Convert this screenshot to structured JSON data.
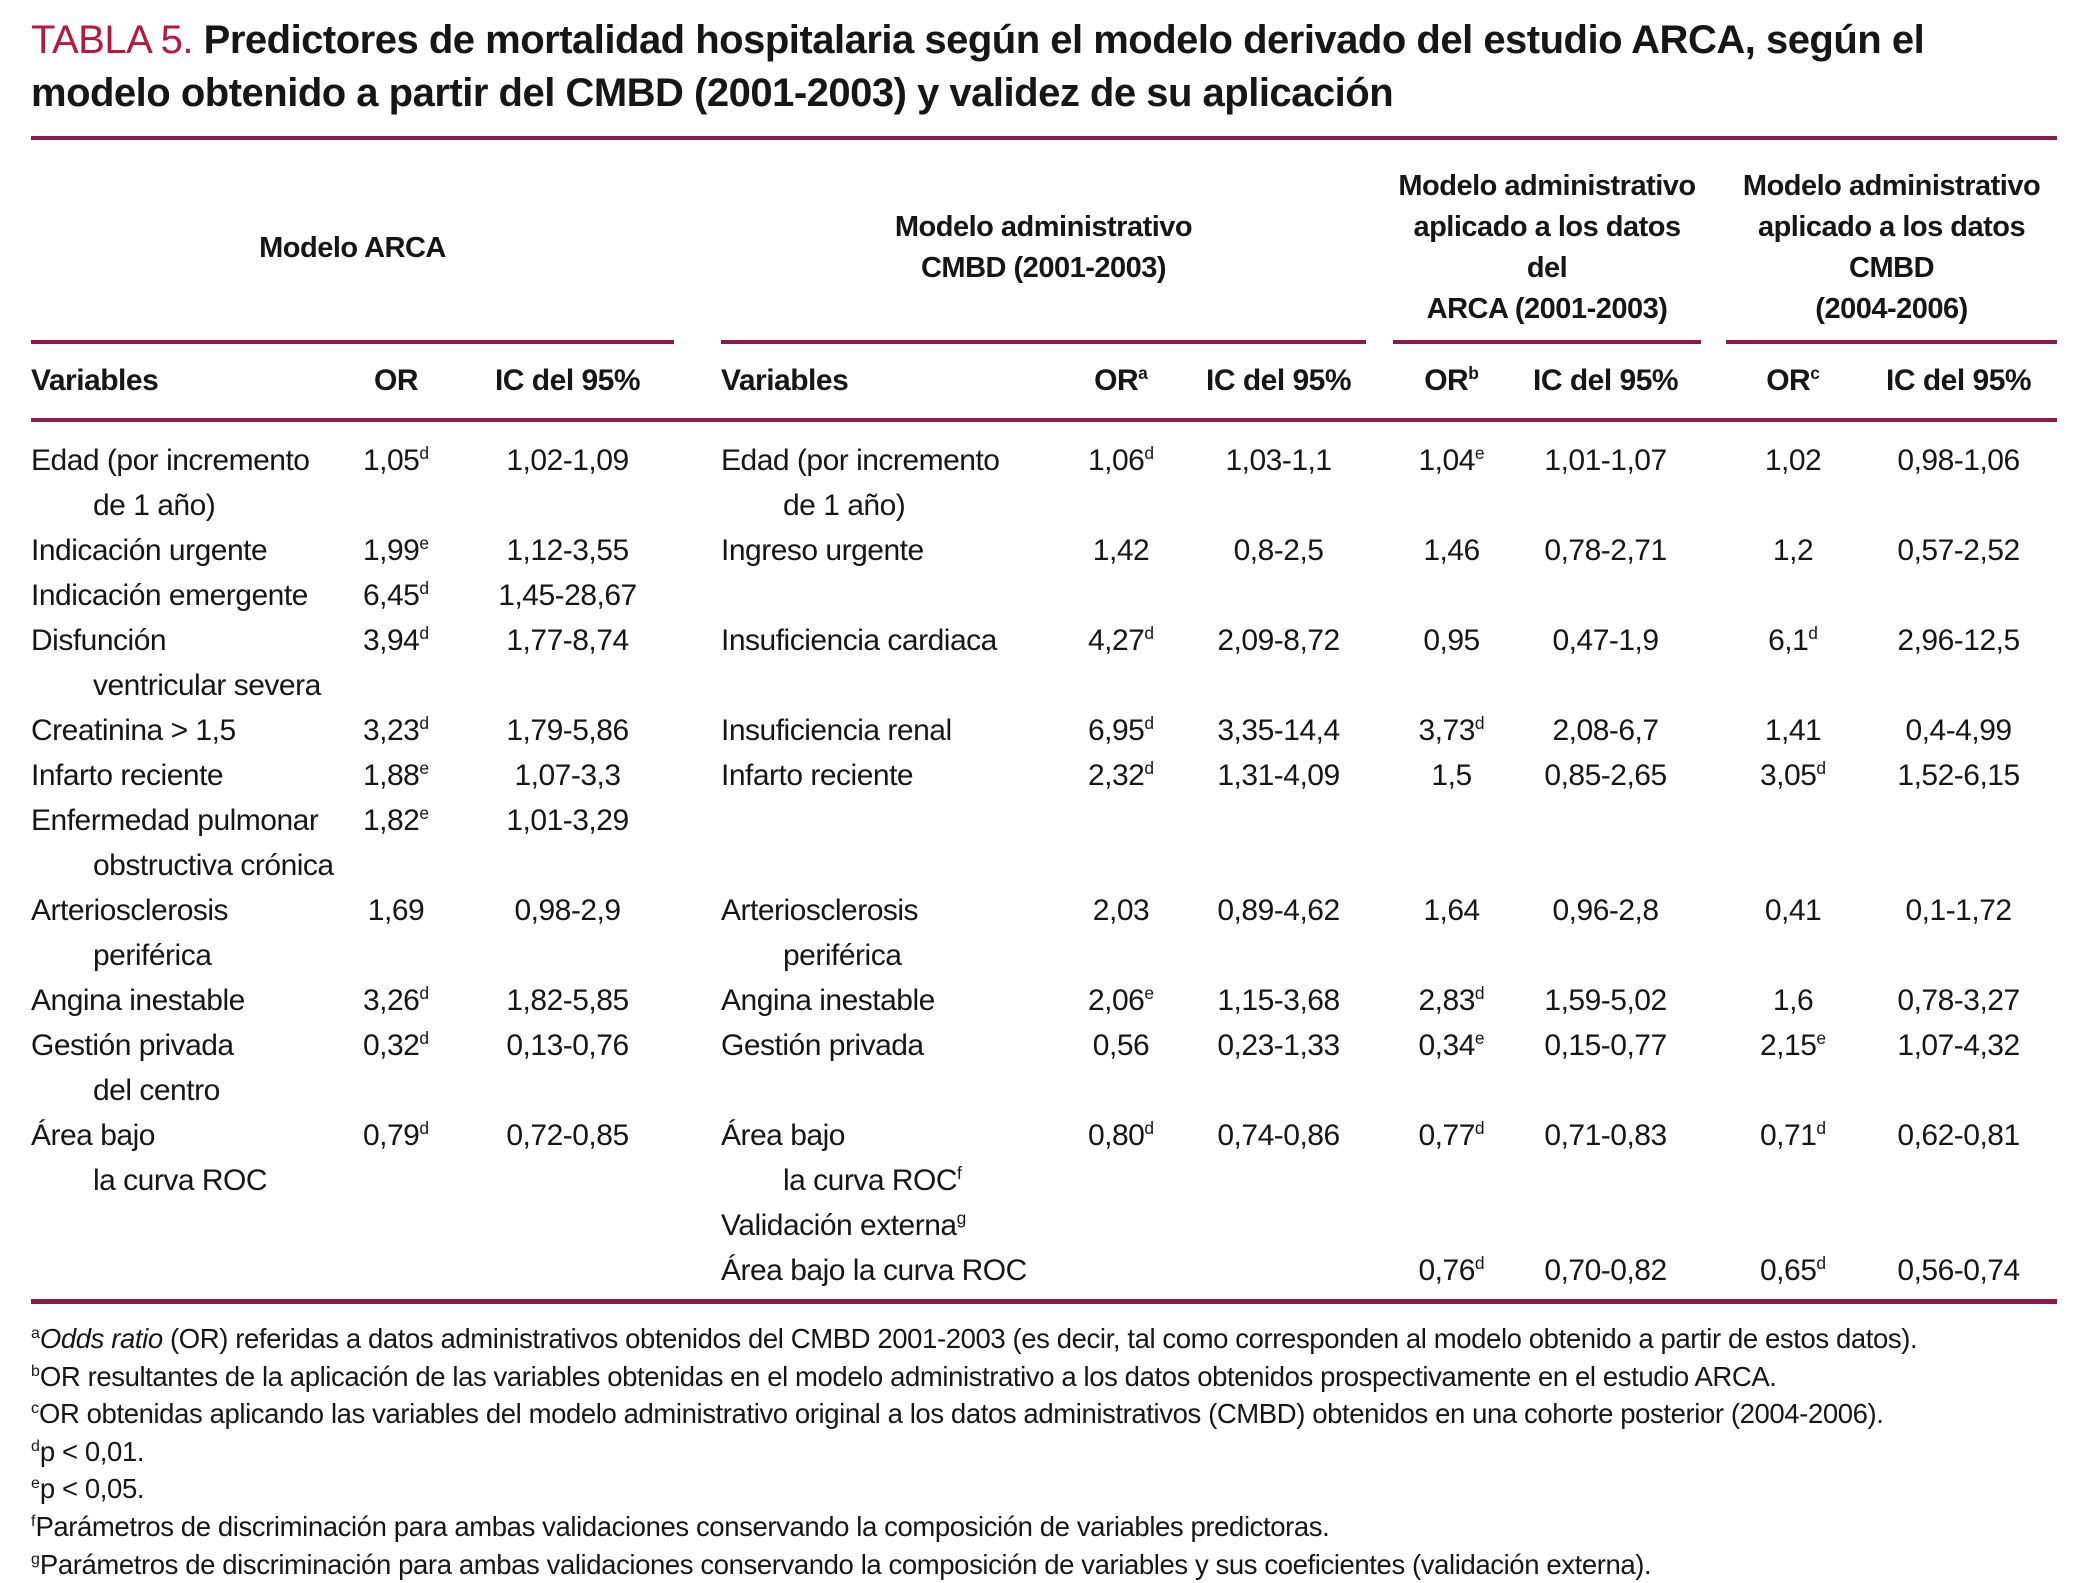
{
  "title": {
    "tag": "TABLA 5.",
    "text": "Predictores de mortalidad hospitalaria según el modelo derivado del estudio ARCA, según el modelo obtenido a partir del CMBD (2001-2003) y validez de su aplicación"
  },
  "colors": {
    "title_red": "#b5193b",
    "rule_maroon": "#871c4c",
    "text_ink": "#161616"
  },
  "group_headers": [
    {
      "lines": [
        "Modelo ARCA"
      ]
    },
    {
      "lines": [
        "Modelo administrativo",
        "CMBD (2001-2003)"
      ]
    },
    {
      "lines": [
        "Modelo administrativo",
        "aplicado a los datos del",
        "ARCA (2001-2003)"
      ]
    },
    {
      "lines": [
        "Modelo administrativo",
        "aplicado a los datos CMBD",
        "(2004-2006)"
      ]
    }
  ],
  "column_headers": {
    "variables": "Variables",
    "or": "OR",
    "ic": "IC del 95%",
    "or_sups": [
      "",
      "a",
      "b",
      "c"
    ]
  },
  "rows": [
    {
      "v1": {
        "lines": [
          {
            "t": "Edad (por incremento"
          },
          {
            "t": "de 1 año)"
          }
        ]
      },
      "or1": {
        "t": "1,05",
        "sup": "d"
      },
      "ic1": {
        "t": "1,02-1,09"
      },
      "v2": {
        "lines": [
          {
            "t": "Edad (por incremento"
          },
          {
            "t": "de 1 año)"
          }
        ]
      },
      "or2": {
        "t": "1,06",
        "sup": "d"
      },
      "ic2": {
        "t": "1,03-1,1"
      },
      "or3": {
        "t": "1,04",
        "sup": "e"
      },
      "ic3": {
        "t": "1,01-1,07"
      },
      "or4": {
        "t": "1,02"
      },
      "ic4": {
        "t": "0,98-1,06"
      }
    },
    {
      "v1": {
        "lines": [
          {
            "t": "Indicación urgente"
          }
        ]
      },
      "or1": {
        "t": "1,99",
        "sup": "e"
      },
      "ic1": {
        "t": "1,12-3,55"
      },
      "v2": {
        "lines": [
          {
            "t": "Ingreso urgente"
          }
        ]
      },
      "or2": {
        "t": "1,42"
      },
      "ic2": {
        "t": "0,8-2,5"
      },
      "or3": {
        "t": "1,46"
      },
      "ic3": {
        "t": "0,78-2,71"
      },
      "or4": {
        "t": "1,2"
      },
      "ic4": {
        "t": "0,57-2,52"
      }
    },
    {
      "v1": {
        "lines": [
          {
            "t": "Indicación emergente"
          }
        ]
      },
      "or1": {
        "t": "6,45",
        "sup": "d"
      },
      "ic1": {
        "t": "1,45-28,67"
      }
    },
    {
      "v1": {
        "lines": [
          {
            "t": "Disfunción"
          },
          {
            "t": "ventricular severa"
          }
        ]
      },
      "or1": {
        "t": "3,94",
        "sup": "d"
      },
      "ic1": {
        "t": "1,77-8,74"
      },
      "v2": {
        "lines": [
          {
            "t": "Insuficiencia cardiaca"
          }
        ]
      },
      "or2": {
        "t": "4,27",
        "sup": "d"
      },
      "ic2": {
        "t": "2,09-8,72"
      },
      "or3": {
        "t": "0,95"
      },
      "ic3": {
        "t": "0,47-1,9"
      },
      "or4": {
        "t": "6,1",
        "sup": "d"
      },
      "ic4": {
        "t": "2,96-12,5"
      }
    },
    {
      "v1": {
        "lines": [
          {
            "t": "Creatinina > 1,5"
          }
        ]
      },
      "or1": {
        "t": "3,23",
        "sup": "d"
      },
      "ic1": {
        "t": "1,79-5,86"
      },
      "v2": {
        "lines": [
          {
            "t": "Insuficiencia renal"
          }
        ]
      },
      "or2": {
        "t": "6,95",
        "sup": "d"
      },
      "ic2": {
        "t": "3,35-14,4"
      },
      "or3": {
        "t": "3,73",
        "sup": "d"
      },
      "ic3": {
        "t": "2,08-6,7"
      },
      "or4": {
        "t": "1,41"
      },
      "ic4": {
        "t": "0,4-4,99"
      }
    },
    {
      "v1": {
        "lines": [
          {
            "t": "Infarto reciente"
          }
        ]
      },
      "or1": {
        "t": "1,88",
        "sup": "e"
      },
      "ic1": {
        "t": "1,07-3,3"
      },
      "v2": {
        "lines": [
          {
            "t": "Infarto reciente"
          }
        ]
      },
      "or2": {
        "t": "2,32",
        "sup": "d"
      },
      "ic2": {
        "t": "1,31-4,09"
      },
      "or3": {
        "t": "1,5"
      },
      "ic3": {
        "t": "0,85-2,65"
      },
      "or4": {
        "t": "3,05",
        "sup": "d"
      },
      "ic4": {
        "t": "1,52-6,15"
      }
    },
    {
      "v1": {
        "lines": [
          {
            "t": "Enfermedad pulmonar"
          },
          {
            "t": "obstructiva crónica"
          }
        ]
      },
      "or1": {
        "t": "1,82",
        "sup": "e"
      },
      "ic1": {
        "t": "1,01-3,29"
      }
    },
    {
      "v1": {
        "lines": [
          {
            "t": "Arteriosclerosis"
          },
          {
            "t": "periférica"
          }
        ]
      },
      "or1": {
        "t": "1,69"
      },
      "ic1": {
        "t": "0,98-2,9"
      },
      "v2": {
        "lines": [
          {
            "t": "Arteriosclerosis"
          },
          {
            "t": "periférica"
          }
        ]
      },
      "or2": {
        "t": "2,03"
      },
      "ic2": {
        "t": "0,89-4,62"
      },
      "or3": {
        "t": "1,64"
      },
      "ic3": {
        "t": "0,96-2,8"
      },
      "or4": {
        "t": "0,41"
      },
      "ic4": {
        "t": "0,1-1,72"
      }
    },
    {
      "v1": {
        "lines": [
          {
            "t": "Angina inestable"
          }
        ]
      },
      "or1": {
        "t": "3,26",
        "sup": "d"
      },
      "ic1": {
        "t": "1,82-5,85"
      },
      "v2": {
        "lines": [
          {
            "t": "Angina inestable"
          }
        ]
      },
      "or2": {
        "t": "2,06",
        "sup": "e"
      },
      "ic2": {
        "t": "1,15-3,68"
      },
      "or3": {
        "t": "2,83",
        "sup": "d"
      },
      "ic3": {
        "t": "1,59-5,02"
      },
      "or4": {
        "t": "1,6"
      },
      "ic4": {
        "t": "0,78-3,27"
      }
    },
    {
      "v1": {
        "lines": [
          {
            "t": "Gestión privada"
          },
          {
            "t": "del centro"
          }
        ]
      },
      "or1": {
        "t": "0,32",
        "sup": "d"
      },
      "ic1": {
        "t": "0,13-0,76"
      },
      "v2": {
        "lines": [
          {
            "t": "Gestión privada"
          }
        ]
      },
      "or2": {
        "t": "0,56"
      },
      "ic2": {
        "t": "0,23-1,33"
      },
      "or3": {
        "t": "0,34",
        "sup": "e"
      },
      "ic3": {
        "t": "0,15-0,77"
      },
      "or4": {
        "t": "2,15",
        "sup": "e"
      },
      "ic4": {
        "t": "1,07-4,32"
      }
    },
    {
      "v1": {
        "lines": [
          {
            "t": "Área bajo"
          },
          {
            "t": "la curva ROC"
          }
        ]
      },
      "or1": {
        "t": "0,79",
        "sup": "d"
      },
      "ic1": {
        "t": "0,72-0,85"
      },
      "v2": {
        "lines": [
          {
            "t": "Área bajo"
          },
          {
            "t": "la curva ROC",
            "sup": "f"
          }
        ]
      },
      "or2": {
        "t": "0,80",
        "sup": "d"
      },
      "ic2": {
        "t": "0,74-0,86"
      },
      "or3": {
        "t": "0,77",
        "sup": "d"
      },
      "ic3": {
        "t": "0,71-0,83"
      },
      "or4": {
        "t": "0,71",
        "sup": "d"
      },
      "ic4": {
        "t": "0,62-0,81"
      }
    },
    {
      "v2": {
        "lines": [
          {
            "t": "Validación externa",
            "sup": "g"
          }
        ]
      }
    },
    {
      "v2": {
        "lines": [
          {
            "t": "Área bajo la curva ROC"
          }
        ]
      },
      "or3": {
        "t": "0,76",
        "sup": "d"
      },
      "ic3": {
        "t": "0,70-0,82"
      },
      "or4": {
        "t": "0,65",
        "sup": "d"
      },
      "ic4": {
        "t": "0,56-0,74"
      }
    }
  ],
  "footnotes": [
    {
      "sup": "a",
      "italic": "Odds ratio",
      "text": " (OR) referidas a datos administrativos obtenidos del CMBD 2001-2003 (es decir, tal como corresponden al modelo obtenido a partir de estos datos)."
    },
    {
      "sup": "b",
      "text": "OR resultantes de la aplicación de las variables obtenidas en el modelo administrativo a los datos obtenidos prospectivamente en el estudio ARCA."
    },
    {
      "sup": "c",
      "text": "OR obtenidas aplicando las variables del modelo administrativo original a los datos administrativos (CMBD) obtenidos en una cohorte posterior (2004-2006)."
    },
    {
      "sup": "d",
      "text": "p < 0,01."
    },
    {
      "sup": "e",
      "text": "p < 0,05."
    },
    {
      "sup": "f",
      "text": "Parámetros de discriminación para ambas validaciones conservando la composición de variables predictoras."
    },
    {
      "sup": "g",
      "text": "Parámetros de discriminación para ambas validaciones conservando la composición de variables y sus coeficientes (validación externa)."
    }
  ]
}
